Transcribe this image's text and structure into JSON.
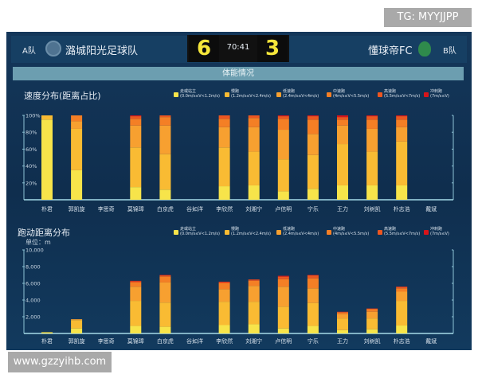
{
  "watermark_top": "TG: MYYJJPP",
  "watermark_bottom": "www.gzzyihb.com",
  "header": {
    "team_a_label": "A队",
    "team_a_name": "潞城阳光足球队",
    "score_a": "6",
    "time": "70:41",
    "score_b": "3",
    "team_b_name": "懂球帝FC",
    "team_b_label": "B队"
  },
  "banner": "体能情况",
  "legend": [
    {
      "name": "走或站立",
      "range": "(0.0m/s≤V<1.2m/s)",
      "color": "#f7e44a"
    },
    {
      "name": "慢跑",
      "range": "(1.2m/s≤V<2.4m/s)",
      "color": "#f9bb33"
    },
    {
      "name": "低速跑",
      "range": "(2.4m/s≤V<4m/s)",
      "color": "#f7a030"
    },
    {
      "name": "中速跑",
      "range": "(4m/s≤V<5.5m/s)",
      "color": "#f47f25"
    },
    {
      "name": "高速跑",
      "range": "(5.5m/s≤V<7m/s)",
      "color": "#ec5620"
    },
    {
      "name": "冲刺跑",
      "range": "(7m/s≤V)",
      "color": "#d8141a"
    }
  ],
  "chart_data": [
    {
      "type": "bar",
      "stacked": true,
      "title": "速度分布(距离占比)",
      "ylim": [
        0,
        100
      ],
      "yticks": [
        "20%",
        "40%",
        "60%",
        "80%",
        "100%"
      ],
      "categories": [
        "朴君",
        "郭凯旋",
        "李思奇",
        "莫锦璋",
        "白京虎",
        "谷如洋",
        "李欣然",
        "刘湘宁",
        "卢信明",
        "宁乐",
        "王力",
        "刘树凯",
        "朴志浩",
        "戴斌"
      ],
      "series": [
        {
          "name": "走或站立",
          "values": [
            95,
            35,
            0,
            15,
            12,
            0,
            16,
            17,
            10,
            13,
            17,
            17,
            17,
            0
          ]
        },
        {
          "name": "慢跑",
          "values": [
            5,
            49,
            0,
            47,
            42,
            0,
            46,
            40,
            38,
            40,
            49,
            40,
            52,
            0
          ]
        },
        {
          "name": "低速跑",
          "values": [
            0,
            9,
            0,
            26,
            34,
            0,
            24,
            29,
            35,
            25,
            22,
            27,
            17,
            0
          ]
        },
        {
          "name": "中速跑",
          "values": [
            0,
            7,
            0,
            8,
            10,
            0,
            10,
            11,
            13,
            17,
            7,
            11,
            9,
            0
          ]
        },
        {
          "name": "高速跑",
          "values": [
            0,
            0,
            0,
            3,
            2,
            0,
            4,
            3,
            3,
            4,
            3,
            4,
            4,
            0
          ]
        },
        {
          "name": "冲刺跑",
          "values": [
            0,
            0,
            0,
            1,
            0,
            0,
            0,
            0,
            1,
            1,
            2,
            1,
            1,
            0
          ]
        }
      ]
    },
    {
      "type": "bar",
      "stacked": true,
      "title": "跑动距离分布",
      "unit": "单位：m",
      "ylim": [
        0,
        10000
      ],
      "yticks": [
        "2,000",
        "4,000",
        "6,000",
        "8,000",
        "10,000"
      ],
      "categories": [
        "朴君",
        "郭凯旋",
        "李思奇",
        "莫锦璋",
        "白京虎",
        "谷如洋",
        "李欣然",
        "刘湘宁",
        "卢信明",
        "宁乐",
        "王力",
        "刘树凯",
        "朴志浩",
        "戴斌"
      ],
      "series": [
        {
          "name": "走或站立",
          "values": [
            140,
            600,
            0,
            900,
            800,
            0,
            1000,
            1100,
            600,
            900,
            400,
            500,
            950,
            0
          ]
        },
        {
          "name": "慢跑",
          "values": [
            10,
            1000,
            0,
            3000,
            2900,
            0,
            2800,
            2700,
            2600,
            2750,
            1400,
            1300,
            2950,
            0
          ]
        },
        {
          "name": "低速跑",
          "values": [
            0,
            100,
            0,
            1700,
            2400,
            0,
            1500,
            1900,
            2400,
            1750,
            500,
            800,
            1100,
            0
          ]
        },
        {
          "name": "中速跑",
          "values": [
            0,
            0,
            0,
            500,
            700,
            0,
            700,
            600,
            900,
            1200,
            200,
            300,
            400,
            0
          ]
        },
        {
          "name": "高速跑",
          "values": [
            0,
            0,
            0,
            150,
            150,
            0,
            150,
            150,
            300,
            350,
            80,
            80,
            170,
            0
          ]
        },
        {
          "name": "冲刺跑",
          "values": [
            0,
            0,
            0,
            50,
            50,
            0,
            50,
            20,
            100,
            50,
            20,
            20,
            30,
            0
          ]
        }
      ]
    }
  ]
}
